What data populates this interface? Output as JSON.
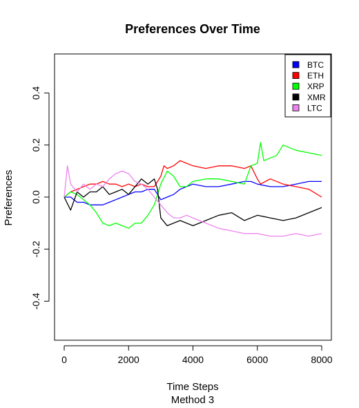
{
  "chart_data": {
    "type": "line",
    "title": "Preferences Over Time",
    "xlabel": "Time Steps",
    "subtitle": "Method 3",
    "ylabel": "Preferences",
    "xlim": [
      0,
      8000
    ],
    "ylim": [
      -0.55,
      0.55
    ],
    "xticks": [
      "0",
      "2000",
      "4000",
      "6000",
      "8000"
    ],
    "xtick_values": [
      0,
      2000,
      4000,
      6000,
      8000
    ],
    "yticks": [
      "-0.4",
      "-0.2",
      "0.0",
      "0.2",
      "0.4"
    ],
    "ytick_values": [
      -0.4,
      -0.2,
      0.0,
      0.2,
      0.4
    ],
    "grid": false,
    "legend_position": "top-right",
    "series": [
      {
        "name": "BTC",
        "color": "#0000ff",
        "x": [
          0,
          200,
          400,
          600,
          800,
          1000,
          1200,
          1400,
          1600,
          1800,
          2000,
          2200,
          2400,
          2600,
          2800,
          3000,
          3200,
          3400,
          3600,
          3800,
          4000,
          4400,
          4800,
          5200,
          5600,
          5800,
          6000,
          6400,
          6800,
          7200,
          7600,
          8000
        ],
        "values": [
          0.0,
          0.0,
          -0.02,
          -0.02,
          -0.03,
          -0.03,
          -0.03,
          -0.02,
          -0.01,
          0.0,
          0.01,
          0.02,
          0.02,
          0.03,
          0.03,
          -0.01,
          0.0,
          0.01,
          0.03,
          0.04,
          0.05,
          0.04,
          0.04,
          0.05,
          0.06,
          0.06,
          0.05,
          0.04,
          0.04,
          0.05,
          0.06,
          0.06
        ]
      },
      {
        "name": "ETH",
        "color": "#ff0000",
        "x": [
          0,
          200,
          400,
          600,
          800,
          1000,
          1200,
          1400,
          1600,
          1800,
          2000,
          2200,
          2400,
          2600,
          2800,
          3000,
          3100,
          3200,
          3400,
          3600,
          3800,
          4000,
          4400,
          4800,
          5200,
          5600,
          5800,
          6000,
          6100,
          6400,
          6800,
          7200,
          7600,
          8000
        ],
        "values": [
          0.0,
          0.02,
          0.03,
          0.04,
          0.05,
          0.05,
          0.06,
          0.05,
          0.05,
          0.04,
          0.05,
          0.04,
          0.05,
          0.04,
          0.04,
          0.08,
          0.12,
          0.11,
          0.12,
          0.14,
          0.13,
          0.12,
          0.11,
          0.12,
          0.12,
          0.11,
          0.12,
          0.07,
          0.05,
          0.07,
          0.05,
          0.04,
          0.03,
          0.0
        ]
      },
      {
        "name": "XRP",
        "color": "#00ff00",
        "x": [
          0,
          200,
          400,
          600,
          800,
          1000,
          1200,
          1400,
          1600,
          1800,
          2000,
          2200,
          2400,
          2600,
          2800,
          3000,
          3200,
          3400,
          3600,
          3800,
          4000,
          4400,
          4800,
          5200,
          5600,
          5800,
          6000,
          6100,
          6200,
          6600,
          6800,
          7200,
          7600,
          8000
        ],
        "values": [
          0.0,
          0.02,
          0.01,
          -0.01,
          -0.03,
          -0.06,
          -0.1,
          -0.11,
          -0.1,
          -0.11,
          -0.12,
          -0.1,
          -0.1,
          -0.07,
          -0.03,
          0.05,
          0.1,
          0.08,
          0.04,
          0.04,
          0.06,
          0.07,
          0.07,
          0.06,
          0.05,
          0.12,
          0.13,
          0.21,
          0.14,
          0.16,
          0.2,
          0.18,
          0.17,
          0.16
        ]
      },
      {
        "name": "XMR",
        "color": "#000000",
        "x": [
          0,
          200,
          400,
          600,
          800,
          1000,
          1200,
          1400,
          1600,
          1800,
          2000,
          2200,
          2400,
          2600,
          2800,
          2900,
          3000,
          3200,
          3400,
          3600,
          3800,
          4000,
          4400,
          4800,
          5200,
          5600,
          6000,
          6400,
          6800,
          7200,
          7600,
          8000
        ],
        "values": [
          0.0,
          -0.05,
          0.02,
          0.0,
          0.02,
          0.02,
          0.04,
          0.01,
          0.02,
          0.03,
          0.01,
          0.04,
          0.07,
          0.05,
          0.07,
          0.03,
          -0.08,
          -0.11,
          -0.1,
          -0.09,
          -0.1,
          -0.11,
          -0.09,
          -0.07,
          -0.06,
          -0.09,
          -0.07,
          -0.08,
          -0.09,
          -0.08,
          -0.06,
          -0.04
        ]
      },
      {
        "name": "LTC",
        "color": "#ee82ee",
        "x": [
          0,
          100,
          200,
          400,
          600,
          800,
          1000,
          1200,
          1400,
          1600,
          1800,
          2000,
          2200,
          2400,
          2600,
          2800,
          3000,
          3200,
          3400,
          3600,
          3800,
          4000,
          4400,
          4800,
          5200,
          5600,
          6000,
          6400,
          6800,
          7200,
          7600,
          8000
        ],
        "values": [
          0.0,
          0.12,
          0.05,
          0.02,
          0.05,
          0.03,
          0.05,
          0.04,
          0.07,
          0.09,
          0.1,
          0.09,
          0.06,
          0.05,
          0.03,
          0.0,
          -0.03,
          -0.06,
          -0.08,
          -0.08,
          -0.07,
          -0.08,
          -0.1,
          -0.12,
          -0.13,
          -0.14,
          -0.14,
          -0.15,
          -0.15,
          -0.14,
          -0.15,
          -0.14
        ]
      }
    ]
  }
}
